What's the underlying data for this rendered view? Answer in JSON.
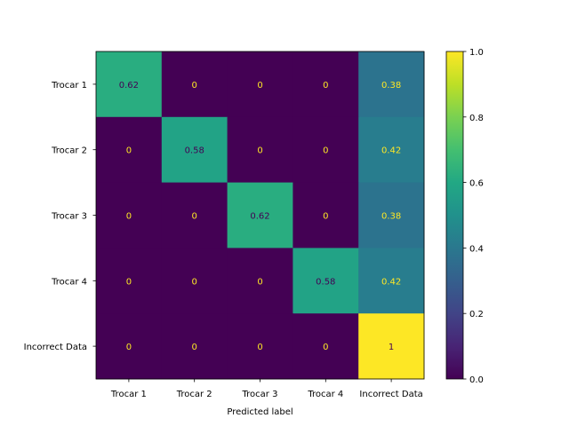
{
  "chart_data": {
    "type": "heatmap",
    "title": "",
    "xlabel": "Predicted label",
    "ylabel": "",
    "x_categories": [
      "Trocar 1",
      "Trocar 2",
      "Trocar 3",
      "Trocar 4",
      "Incorrect Data"
    ],
    "y_categories": [
      "Trocar 1",
      "Trocar 2",
      "Trocar 3",
      "Trocar 4",
      "Incorrect Data"
    ],
    "values": [
      [
        0.62,
        0,
        0,
        0,
        0.38
      ],
      [
        0,
        0.58,
        0,
        0,
        0.42
      ],
      [
        0,
        0,
        0.62,
        0,
        0.38
      ],
      [
        0,
        0,
        0,
        0.58,
        0.42
      ],
      [
        0,
        0,
        0,
        0,
        1
      ]
    ],
    "labels": [
      [
        "0.62",
        "0",
        "0",
        "0",
        "0.38"
      ],
      [
        "0",
        "0.58",
        "0",
        "0",
        "0.42"
      ],
      [
        "0",
        "0",
        "0.62",
        "0",
        "0.38"
      ],
      [
        "0",
        "0",
        "0",
        "0.58",
        "0.42"
      ],
      [
        "0",
        "0",
        "0",
        "0",
        "1"
      ]
    ],
    "colormap": "viridis",
    "clim": [
      0,
      1
    ],
    "colorbar_ticks": [
      "0.0",
      "0.2",
      "0.4",
      "0.6",
      "0.8",
      "1.0"
    ],
    "colorbar_tick_values": [
      0,
      0.2,
      0.4,
      0.6,
      0.8,
      1.0
    ],
    "text_color_dark": "#440154",
    "text_color_light": "#fde725"
  }
}
